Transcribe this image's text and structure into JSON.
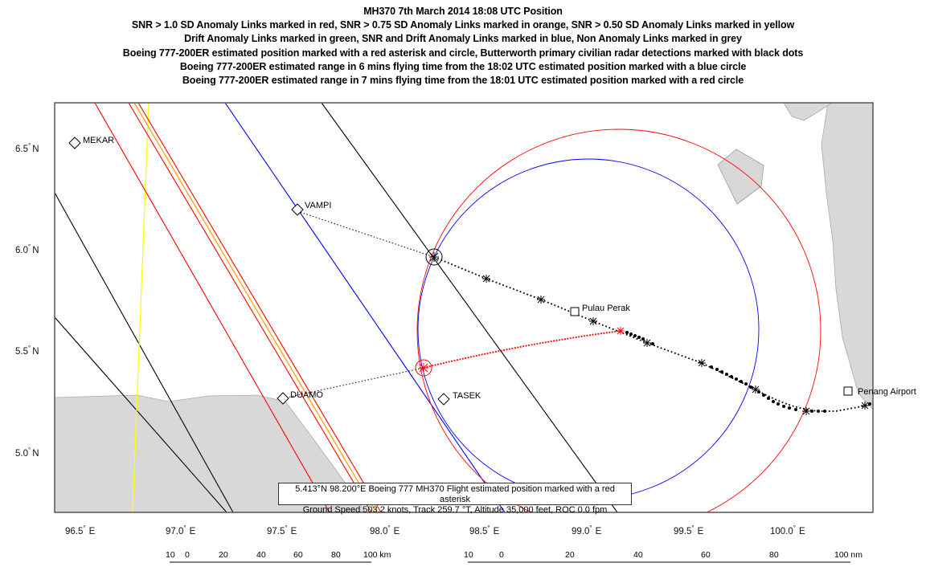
{
  "title": {
    "line1": "MH370 7th March 2014 18:08 UTC Position",
    "line2": "SNR > 1.0 SD Anomaly Links marked in red, SNR > 0.75 SD Anomaly Links marked in orange, SNR > 0.50 SD Anomaly Links marked in yellow",
    "line3": "Drift Anomaly Links marked in green, SNR and Drift Anomaly Links marked in blue, Non Anomaly Links marked in grey",
    "line4": "Boeing 777-200ER estimated position marked with a red asterisk and circle, Butterworth primary civilian radar detections marked with black dots",
    "line5": "Boeing 777-200ER estimated range in 6 mins flying time from the 18:02 UTC estimated position marked with a blue circle",
    "line6": "Boeing 777-200ER estimated range in 7 mins flying time from the 18:01 UTC estimated position marked with a red circle"
  },
  "axes": {
    "lat_ticks": [
      "6.5",
      "6.0",
      "5.5",
      "5.0"
    ],
    "lat_suffix": "N",
    "lon_ticks": [
      "96.5",
      "97.0",
      "97.5",
      "98.0",
      "98.5",
      "99.0",
      "99.5",
      "100.0"
    ],
    "lon_suffix": "E",
    "degree": "°"
  },
  "waypoints": {
    "mekar": "MEKAR",
    "vampi": "VAMPI",
    "duamo": "DUAMO",
    "tasek": "TASEK",
    "pulau_perak": "Pulau Perak",
    "penang_airport": "Penang Airport"
  },
  "info_box": {
    "line1": "5.413°N 98.200°E Boeing 777 MH370 Flight estimated position marked with a red asterisk",
    "line2": "Ground Speed 503.2 knots, Track 259.7 °T, Altitude 35,000 feet, ROC 0.0 fpm"
  },
  "scale_km": {
    "labels": [
      "10",
      "0",
      "20",
      "40",
      "60",
      "80"
    ],
    "end_label": "100 km"
  },
  "scale_nm": {
    "labels": [
      "10",
      "0",
      "20",
      "40",
      "60",
      "80"
    ],
    "end_label": "100 nm"
  },
  "colors": {
    "red_link": "#ff0000",
    "orange_link": "#ffa500",
    "yellow_link": "#ffff00",
    "blue_link": "#0000ff",
    "grey_land": "#d9d9d9",
    "frame": "#555555"
  }
}
